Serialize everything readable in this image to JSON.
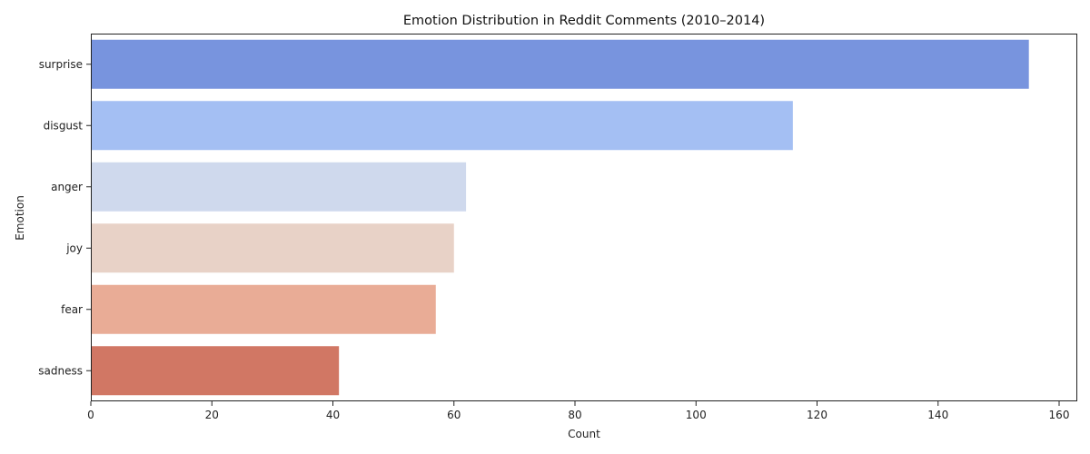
{
  "chart_data": {
    "type": "bar",
    "orientation": "horizontal",
    "title": "Emotion Distribution in Reddit Comments (2010–2014)",
    "xlabel": "Count",
    "ylabel": "Emotion",
    "xlim": [
      0,
      163
    ],
    "xticks": [
      0,
      20,
      40,
      60,
      80,
      100,
      120,
      140,
      160
    ],
    "categories": [
      "surprise",
      "disgust",
      "anger",
      "joy",
      "fear",
      "sadness"
    ],
    "values": [
      155,
      116,
      62,
      60,
      57,
      41
    ],
    "colors": [
      "#7894de",
      "#a4bff3",
      "#cfd9ed",
      "#e8d2c7",
      "#e9ac96",
      "#d17764"
    ],
    "grid": false,
    "legend": "none"
  }
}
